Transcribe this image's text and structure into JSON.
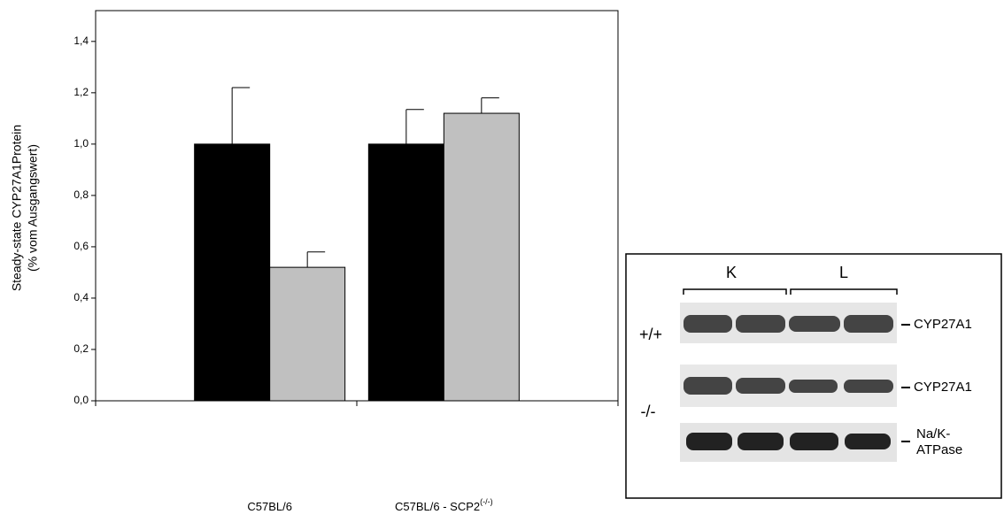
{
  "chart_data": {
    "type": "bar",
    "ylabel": [
      "Steady-state CYP27A1Protein",
      "(% vom Ausgangswert)"
    ],
    "categories": [
      "C57BL/6",
      "C57BL/6 - SCP2"
    ],
    "category_superscripts": [
      null,
      "(-/-)"
    ],
    "series": [
      {
        "color": "#000000",
        "values": [
          1.0,
          1.0
        ],
        "errors": [
          0.22,
          0.135
        ]
      },
      {
        "color": "#c0c0c0",
        "values": [
          0.52,
          1.12
        ],
        "errors": [
          0.06,
          0.06
        ]
      }
    ],
    "ylim": [
      0,
      1.52
    ],
    "yticks": [
      {
        "value": 0,
        "label": "0,0"
      },
      {
        "value": 0.2,
        "label": "0,2"
      },
      {
        "value": 0.4,
        "label": "0,4"
      },
      {
        "value": 0.6,
        "label": "0,6"
      },
      {
        "value": 0.8,
        "label": "0,8"
      },
      {
        "value": 1.0,
        "label": "1,0"
      },
      {
        "value": 1.2,
        "label": "1,2"
      },
      {
        "value": 1.4,
        "label": "1,4"
      }
    ],
    "grid": false
  },
  "blot": {
    "lane_groups": [
      "K",
      "L"
    ],
    "genotypes": [
      "+/+",
      "-/-"
    ],
    "bands": [
      "CYP27A1",
      "CYP27A1",
      "Na/K-",
      "ATPase"
    ]
  }
}
